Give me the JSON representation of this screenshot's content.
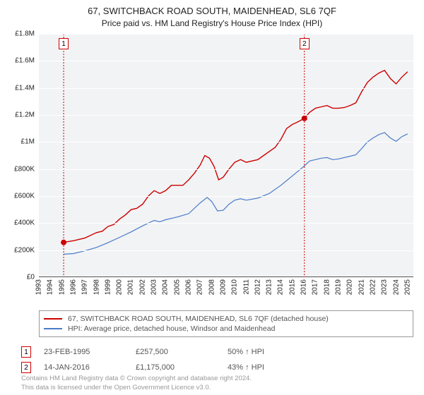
{
  "title": "67, SWITCHBACK ROAD SOUTH, MAIDENHEAD, SL6 7QF",
  "subtitle": "Price paid vs. HM Land Registry's House Price Index (HPI)",
  "chart": {
    "type": "line",
    "background_color": "#f2f3f5",
    "grid_color": "#ffffff",
    "axis_color": "#555555",
    "xlim": [
      1993,
      2025.5
    ],
    "ylim": [
      0,
      1800000
    ],
    "ytick_step": 200000,
    "yticks": [
      "£0",
      "£200K",
      "£400K",
      "£600K",
      "£800K",
      "£1M",
      "£1.2M",
      "£1.4M",
      "£1.6M",
      "£1.8M"
    ],
    "xticks": [
      1993,
      1994,
      1995,
      1996,
      1997,
      1998,
      1999,
      2000,
      2001,
      2002,
      2003,
      2004,
      2005,
      2006,
      2007,
      2008,
      2009,
      2010,
      2011,
      2012,
      2013,
      2014,
      2015,
      2016,
      2017,
      2018,
      2019,
      2020,
      2021,
      2022,
      2023,
      2024,
      2025
    ],
    "series": [
      {
        "id": "property",
        "label": "67, SWITCHBACK ROAD SOUTH, MAIDENHEAD, SL6 7QF (detached house)",
        "color": "#cc0000",
        "line_width": 1.4,
        "data": [
          [
            1995.15,
            257500
          ],
          [
            1996,
            270000
          ],
          [
            1997,
            290000
          ],
          [
            1998,
            330000
          ],
          [
            1998.5,
            340000
          ],
          [
            1999,
            375000
          ],
          [
            1999.5,
            390000
          ],
          [
            2000,
            430000
          ],
          [
            2000.5,
            460000
          ],
          [
            2001,
            500000
          ],
          [
            2001.5,
            510000
          ],
          [
            2002,
            540000
          ],
          [
            2002.5,
            600000
          ],
          [
            2003,
            640000
          ],
          [
            2003.5,
            620000
          ],
          [
            2004,
            640000
          ],
          [
            2004.5,
            680000
          ],
          [
            2005,
            680000
          ],
          [
            2005.5,
            680000
          ],
          [
            2006,
            720000
          ],
          [
            2006.5,
            770000
          ],
          [
            2007,
            830000
          ],
          [
            2007.4,
            900000
          ],
          [
            2007.8,
            880000
          ],
          [
            2008.2,
            820000
          ],
          [
            2008.6,
            720000
          ],
          [
            2009,
            740000
          ],
          [
            2009.5,
            800000
          ],
          [
            2010,
            850000
          ],
          [
            2010.5,
            870000
          ],
          [
            2011,
            850000
          ],
          [
            2011.5,
            860000
          ],
          [
            2012,
            870000
          ],
          [
            2012.5,
            900000
          ],
          [
            2013,
            930000
          ],
          [
            2013.5,
            960000
          ],
          [
            2014,
            1020000
          ],
          [
            2014.5,
            1100000
          ],
          [
            2015,
            1130000
          ],
          [
            2015.5,
            1150000
          ],
          [
            2016.04,
            1175000
          ],
          [
            2016.5,
            1220000
          ],
          [
            2017,
            1250000
          ],
          [
            2017.5,
            1260000
          ],
          [
            2018,
            1270000
          ],
          [
            2018.5,
            1250000
          ],
          [
            2019,
            1250000
          ],
          [
            2019.5,
            1255000
          ],
          [
            2020,
            1270000
          ],
          [
            2020.5,
            1290000
          ],
          [
            2021,
            1370000
          ],
          [
            2021.5,
            1440000
          ],
          [
            2022,
            1480000
          ],
          [
            2022.5,
            1510000
          ],
          [
            2023,
            1530000
          ],
          [
            2023.5,
            1470000
          ],
          [
            2024,
            1430000
          ],
          [
            2024.5,
            1480000
          ],
          [
            2025,
            1520000
          ]
        ]
      },
      {
        "id": "hpi",
        "label": "HPI: Average price, detached house, Windsor and Maidenhead",
        "color": "#4a7bc8",
        "line_width": 1.2,
        "data": [
          [
            1995.15,
            170000
          ],
          [
            1996,
            175000
          ],
          [
            1997,
            195000
          ],
          [
            1998,
            220000
          ],
          [
            1999,
            255000
          ],
          [
            2000,
            295000
          ],
          [
            2001,
            335000
          ],
          [
            2002,
            380000
          ],
          [
            2003,
            420000
          ],
          [
            2003.5,
            410000
          ],
          [
            2004,
            425000
          ],
          [
            2005,
            445000
          ],
          [
            2006,
            470000
          ],
          [
            2007,
            550000
          ],
          [
            2007.6,
            590000
          ],
          [
            2008,
            560000
          ],
          [
            2008.5,
            490000
          ],
          [
            2009,
            495000
          ],
          [
            2009.5,
            540000
          ],
          [
            2010,
            570000
          ],
          [
            2010.5,
            580000
          ],
          [
            2011,
            570000
          ],
          [
            2012,
            585000
          ],
          [
            2013,
            620000
          ],
          [
            2014,
            680000
          ],
          [
            2015,
            750000
          ],
          [
            2016,
            820000
          ],
          [
            2016.5,
            860000
          ],
          [
            2017,
            870000
          ],
          [
            2017.5,
            880000
          ],
          [
            2018,
            885000
          ],
          [
            2018.5,
            870000
          ],
          [
            2019,
            875000
          ],
          [
            2020,
            895000
          ],
          [
            2020.5,
            905000
          ],
          [
            2021,
            950000
          ],
          [
            2021.5,
            1000000
          ],
          [
            2022,
            1030000
          ],
          [
            2022.5,
            1055000
          ],
          [
            2023,
            1070000
          ],
          [
            2023.5,
            1030000
          ],
          [
            2024,
            1005000
          ],
          [
            2024.5,
            1040000
          ],
          [
            2025,
            1060000
          ]
        ]
      }
    ],
    "markers": [
      {
        "n": 1,
        "x": 1995.15,
        "y": 257500,
        "color": "#cc0000",
        "label_top": 98000
      },
      {
        "n": 2,
        "x": 2016.04,
        "y": 1175000,
        "color": "#cc0000",
        "label_top": 98000
      }
    ],
    "label_fontsize": 10,
    "title_fontsize": 13
  },
  "legend": {
    "border_color": "#999999",
    "items": [
      {
        "color": "#cc0000",
        "text_ref": "chart.series.0.label"
      },
      {
        "color": "#4a7bc8",
        "text_ref": "chart.series.1.label"
      }
    ]
  },
  "sales": [
    {
      "n": "1",
      "color": "#cc0000",
      "date": "23-FEB-1995",
      "price": "£257,500",
      "delta": "50% ↑ HPI"
    },
    {
      "n": "2",
      "color": "#cc0000",
      "date": "14-JAN-2016",
      "price": "£1,175,000",
      "delta": "43% ↑ HPI"
    }
  ],
  "footnote": {
    "line1": "Contains HM Land Registry data © Crown copyright and database right 2024.",
    "line2": "This data is licensed under the Open Government Licence v3.0."
  }
}
